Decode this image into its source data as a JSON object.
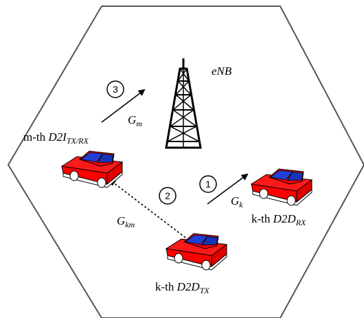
{
  "base_station": {
    "label": "eNB"
  },
  "steps": [
    {
      "number": "1",
      "gain_symbol": "G",
      "gain_subscript": "k"
    },
    {
      "number": "2",
      "gain_symbol": "G",
      "gain_subscript": "km"
    },
    {
      "number": "3",
      "gain_symbol": "G",
      "gain_subscript": "m"
    }
  ],
  "devices": {
    "interferer": {
      "prefix": "m-th ",
      "name": "D2I",
      "subscript": "TX/RX"
    },
    "receiver": {
      "prefix": "k-th ",
      "name": "D2D",
      "subscript": "RX"
    },
    "transmitter": {
      "prefix": "k-th ",
      "name": "D2D",
      "subscript": "TX"
    }
  },
  "colors": {
    "cell_border": "#555555",
    "car_body": "#ff0000",
    "car_window": "#1f3fd6",
    "car_wheel": "#ffffff",
    "tower": "#000000"
  },
  "icons": [
    "hexagon-cell-icon",
    "cell-tower-icon",
    "car-icon"
  ]
}
